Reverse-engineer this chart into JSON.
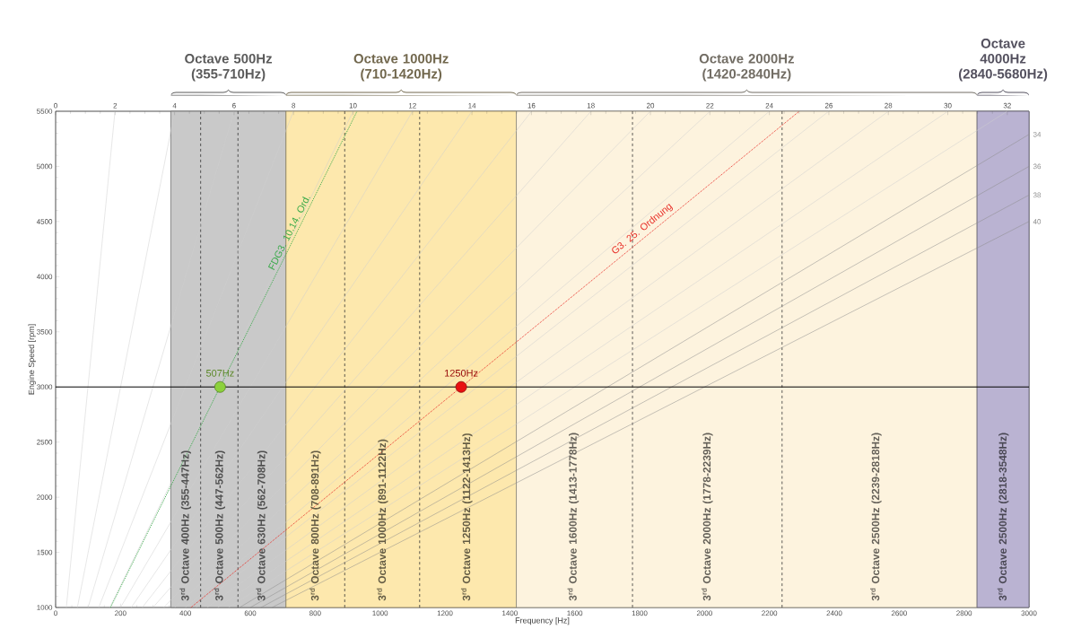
{
  "chart_data": {
    "type": "line",
    "xlabel": "Frequency [Hz]",
    "ylabel": "Engine Speed [rpm]",
    "xlim": [
      0,
      3000
    ],
    "ylim": [
      1000,
      5500
    ],
    "xticks": [
      0,
      200,
      400,
      600,
      800,
      1000,
      1200,
      1400,
      1600,
      1800,
      2000,
      2200,
      2400,
      2600,
      2800,
      3000
    ],
    "yticks": [
      1000,
      1500,
      2000,
      2500,
      3000,
      3500,
      4000,
      4500,
      5000,
      5500
    ],
    "x2lim": [
      0,
      32.73
    ],
    "x2ticks": [
      0,
      2,
      4,
      6,
      8,
      10,
      12,
      14,
      16,
      18,
      20,
      22,
      24,
      26,
      28,
      30,
      32
    ],
    "grid": false,
    "bands": [
      {
        "axis": "x",
        "from": 355,
        "to": 710,
        "label": "Octave 500Hz (355-710Hz)",
        "color": "#c9c9c9"
      },
      {
        "axis": "x",
        "from": 710,
        "to": 1420,
        "label": "Octave 1000Hz (710-1420Hz)",
        "color": "#fde8ad"
      },
      {
        "axis": "x",
        "from": 1420,
        "to": 2840,
        "label": "Octave 2000Hz (1420-2840Hz)",
        "color": "#fdf3de"
      },
      {
        "axis": "x",
        "from": 2840,
        "to": 3000,
        "label": "Octave 4000Hz (2840-5680Hz)",
        "color": "#bab3d2"
      }
    ],
    "series": [
      {
        "color": "#cfcfcf",
        "x": [
          33,
          183
        ],
        "values": [
          1000,
          5500
        ]
      },
      {
        "color": "#cfcfcf",
        "x": [
          67,
          367
        ],
        "values": [
          1000,
          5500
        ]
      },
      {
        "color": "#cfcfcf",
        "x": [
          100,
          550
        ],
        "values": [
          1000,
          5500
        ]
      },
      {
        "color": "#cfcfcf",
        "x": [
          133,
          733
        ],
        "values": [
          1000,
          5500
        ]
      },
      {
        "color": "#cfcfcf",
        "x": [
          167,
          917
        ],
        "values": [
          1000,
          5500
        ]
      },
      {
        "color": "#cfcfcf",
        "x": [
          200,
          1100
        ],
        "values": [
          1000,
          5500
        ]
      },
      {
        "color": "#cfcfcf",
        "x": [
          233,
          1283
        ],
        "values": [
          1000,
          5500
        ]
      },
      {
        "color": "#cfcfcf",
        "x": [
          267,
          1467
        ],
        "values": [
          1000,
          5500
        ]
      },
      {
        "color": "#cfcfcf",
        "x": [
          300,
          1650
        ],
        "values": [
          1000,
          5500
        ]
      },
      {
        "color": "#cfcfcf",
        "x": [
          333,
          1833
        ],
        "values": [
          1000,
          5500
        ]
      },
      {
        "color": "#cfcfcf",
        "x": [
          367,
          2017
        ],
        "values": [
          1000,
          5500
        ]
      },
      {
        "color": "#cfcfcf",
        "x": [
          400,
          2200
        ],
        "values": [
          1000,
          5500
        ]
      },
      {
        "color": "#cfcfcf",
        "x": [
          433,
          2383
        ],
        "values": [
          1000,
          5500
        ]
      },
      {
        "color": "#cfcfcf",
        "x": [
          467,
          2567
        ],
        "values": [
          1000,
          5500
        ]
      },
      {
        "color": "#cfcfcf",
        "x": [
          500,
          2750
        ],
        "values": [
          1000,
          5500
        ]
      },
      {
        "color": "#cfcfcf",
        "x": [
          533,
          2933
        ],
        "values": [
          1000,
          5500
        ]
      },
      {
        "name": "34",
        "color": "#8c8c8c",
        "x": [
          567,
          3000
        ],
        "values": [
          1000,
          5290
        ]
      },
      {
        "name": "36",
        "color": "#8c8c8c",
        "x": [
          600,
          3000
        ],
        "values": [
          1000,
          5000
        ]
      },
      {
        "name": "38",
        "color": "#8c8c8c",
        "x": [
          633,
          3000
        ],
        "values": [
          1000,
          4740
        ]
      },
      {
        "name": "40",
        "color": "#8c8c8c",
        "x": [
          667,
          3000
        ],
        "values": [
          1000,
          4500
        ]
      },
      {
        "name": "FDG3. 10.14. Ord.",
        "color": "#3aaa4a",
        "line_style": "dotted",
        "x": [
          169,
          929
        ],
        "values": [
          1000,
          5500
        ]
      },
      {
        "name": "G3. 25. Ordnung",
        "color": "#e8312a",
        "line_style": "dotted",
        "x": [
          417,
          2292
        ],
        "values": [
          1000,
          5500
        ]
      },
      {
        "type": "scatter",
        "marker": "circle",
        "x": [
          507,
          1250
        ],
        "values": [
          3000,
          3000
        ],
        "colors": [
          "#8cd13c",
          "#e81010"
        ]
      }
    ],
    "ref_lines": [
      {
        "axis": "y",
        "value": 3000,
        "color": "#000000",
        "line_style": "solid"
      },
      {
        "axis": "x",
        "value": 447,
        "color": "#333333",
        "line_style": "dashed"
      },
      {
        "axis": "x",
        "value": 562,
        "color": "#333333",
        "line_style": "dashed"
      },
      {
        "axis": "x",
        "value": 891,
        "color": "#333333",
        "line_style": "dashed"
      },
      {
        "axis": "x",
        "value": 1122,
        "color": "#333333",
        "line_style": "dashed"
      },
      {
        "axis": "x",
        "value": 1778,
        "color": "#333333",
        "line_style": "dashed"
      },
      {
        "axis": "x",
        "value": 2239,
        "color": "#333333",
        "line_style": "dashed"
      }
    ],
    "annotations": [
      {
        "text": "507Hz",
        "x": 507,
        "y": 3000
      },
      {
        "text": "1250Hz",
        "x": 1250,
        "y": 3000
      },
      {
        "text": "3$^{rd}$ Octave 400Hz (355-447Hz)",
        "x": 400,
        "y": 1030
      },
      {
        "text": "3$^{rd}$ Octave 500Hz (447-562Hz)",
        "x": 505,
        "y": 1030
      },
      {
        "text": "3$^{rd}$ Octave 630Hz (562-708Hz)",
        "x": 635,
        "y": 1030
      },
      {
        "text": "3$^{rd}$ Octave 800Hz (708-891Hz)",
        "x": 800,
        "y": 1030
      },
      {
        "text": "3$^{rd}$ Octave 1000Hz (891-1122Hz)",
        "x": 1007,
        "y": 1030
      },
      {
        "text": "3$^{rd}$ Octave 1250Hz (1122-1413Hz)",
        "x": 1267,
        "y": 1030
      },
      {
        "text": "3$^{rd}$ Octave 1600Hz (1413-1778Hz)",
        "x": 1595,
        "y": 1030
      },
      {
        "text": "3$^{rd}$ Octave 2000Hz (1778-2239Hz)",
        "x": 2008,
        "y": 1030
      },
      {
        "text": "3$^{rd}$ Octave 2500Hz (2239-2818Hz)",
        "x": 2528,
        "y": 1030
      },
      {
        "text": "3$^{rd}$ Octave 2500Hz (2818-3548Hz)",
        "x": 2920,
        "y": 1030
      }
    ]
  }
}
